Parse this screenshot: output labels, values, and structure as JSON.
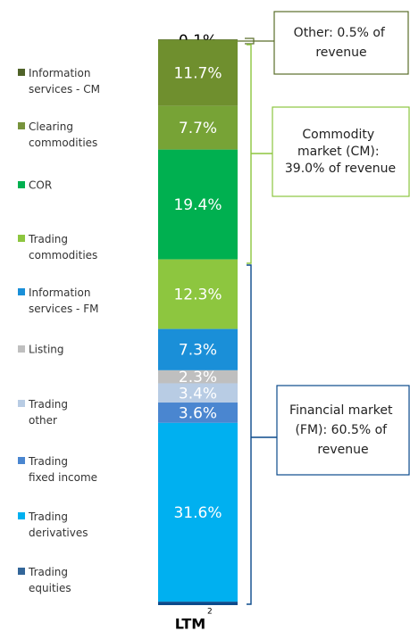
{
  "chart_data": {
    "type": "stacked_bar",
    "categories": [
      "LTM"
    ],
    "category_footnote": "2",
    "ylim": [
      0,
      100
    ],
    "series": [
      {
        "color": "#4f6228",
        "values": [
          0.1
        ],
        "value_labels": [
          "0.1%"
        ]
      },
      {
        "name": "Information services - CM",
        "color": "#6f8f2e",
        "values": [
          11.7
        ],
        "value_labels": [
          "11.7%"
        ]
      },
      {
        "name": "Clearing commodities",
        "color": "#77a336",
        "values": [
          7.7
        ],
        "value_labels": [
          "7.7%"
        ]
      },
      {
        "name": "COR",
        "color": "#00b050",
        "values": [
          19.4
        ],
        "value_labels": [
          "19.4%"
        ]
      },
      {
        "name": "Trading commodities",
        "color": "#8dc63f",
        "values": [
          12.3
        ],
        "value_labels": [
          "12.3%"
        ]
      },
      {
        "name": "Information services - FM",
        "color": "#1a8fd8",
        "values": [
          7.3
        ],
        "value_labels": [
          "7.3%"
        ]
      },
      {
        "name": "Listing",
        "color": "#bfbfbf",
        "values": [
          2.3
        ],
        "value_labels": [
          "2.3%"
        ]
      },
      {
        "name": "Trading other",
        "color": "#b8cce4",
        "values": [
          3.4
        ],
        "value_labels": [
          "3.4%"
        ]
      },
      {
        "name": "Trading fixed income",
        "color": "#4a86d0",
        "values": [
          3.6
        ],
        "value_labels": [
          "3.6%"
        ]
      },
      {
        "name": "Trading derivatives",
        "color": "#00b0f0",
        "values": [
          31.6
        ],
        "value_labels": [
          "31.6%"
        ]
      }
    ],
    "legend": [
      {
        "name": "Information services - CM",
        "color": "#4f6228"
      },
      {
        "name": "Clearing commodities",
        "color": "#77933c"
      },
      {
        "name": "COR",
        "color": "#00b050"
      },
      {
        "name": "Trading commodities",
        "color": "#8dc63f"
      },
      {
        "name": "Information services - FM",
        "color": "#1a8fd8"
      },
      {
        "name": "Listing",
        "color": "#bfbfbf"
      },
      {
        "name": "Trading other",
        "color": "#b8cce4"
      },
      {
        "name": "Trading fixed income",
        "color": "#4a86d0"
      },
      {
        "name": "Trading derivatives",
        "color": "#00b0f0"
      },
      {
        "name": "Trading equities",
        "color": "#336699"
      }
    ],
    "annotations": [
      "Other: 0.5% of revenue",
      "Commodity market (CM): 39.0% of revenue",
      "Financial market (FM): 60.5% of revenue"
    ]
  }
}
